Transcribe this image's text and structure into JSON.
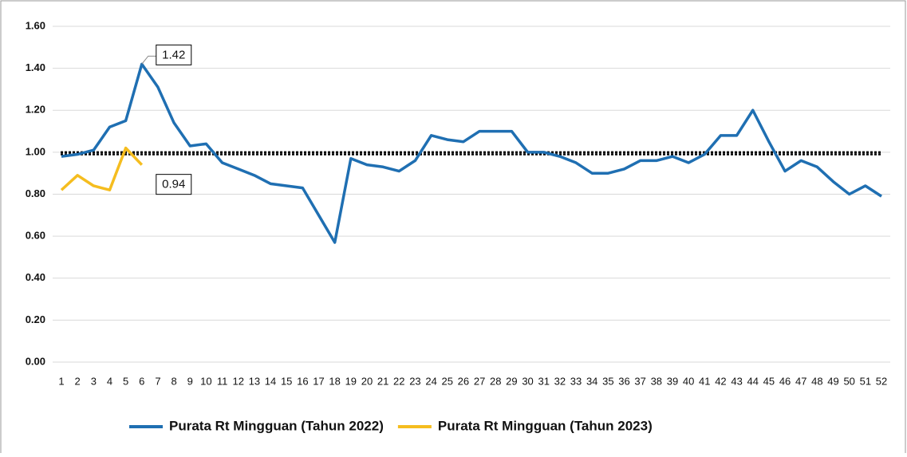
{
  "chart_data": {
    "type": "line",
    "categories": [
      "1",
      "2",
      "3",
      "4",
      "5",
      "6",
      "7",
      "8",
      "9",
      "10",
      "11",
      "12",
      "13",
      "14",
      "15",
      "16",
      "17",
      "18",
      "19",
      "20",
      "21",
      "22",
      "23",
      "24",
      "25",
      "26",
      "27",
      "28",
      "29",
      "30",
      "31",
      "32",
      "33",
      "34",
      "35",
      "36",
      "37",
      "38",
      "39",
      "40",
      "41",
      "42",
      "43",
      "44",
      "45",
      "46",
      "47",
      "48",
      "49",
      "50",
      "51",
      "52"
    ],
    "series": [
      {
        "name": "Purata Rt Mingguan (Tahun 2022)",
        "color": "#1f6fb2",
        "values": [
          0.98,
          0.99,
          1.01,
          1.12,
          1.15,
          1.42,
          1.31,
          1.14,
          1.03,
          1.04,
          0.95,
          0.92,
          0.89,
          0.85,
          0.84,
          0.83,
          0.7,
          0.57,
          0.97,
          0.94,
          0.93,
          0.91,
          0.96,
          1.08,
          1.06,
          1.05,
          1.1,
          1.1,
          1.1,
          1.0,
          1.0,
          0.98,
          0.95,
          0.9,
          0.9,
          0.92,
          0.96,
          0.96,
          0.98,
          0.95,
          0.99,
          1.08,
          1.08,
          1.2,
          1.05,
          0.91,
          0.96,
          0.93,
          0.86,
          0.8,
          0.84,
          0.79
        ],
        "value_labels": [
          null,
          null,
          null,
          null,
          null,
          "1.42",
          null,
          null,
          null,
          null,
          null,
          null,
          null,
          null,
          null,
          null,
          null,
          null,
          null,
          null,
          null,
          null,
          null,
          null,
          null,
          null,
          null,
          null,
          null,
          null,
          null,
          null,
          null,
          null,
          null,
          null,
          null,
          null,
          null,
          null,
          null,
          null,
          null,
          null,
          null,
          null,
          null,
          null,
          null,
          null,
          null,
          null
        ]
      },
      {
        "name": "Purata Rt Mingguan (Tahun 2023)",
        "color": "#f5bd1f",
        "values": [
          0.82,
          0.89,
          0.84,
          0.82,
          1.02,
          0.94,
          null,
          null,
          null,
          null,
          null,
          null,
          null,
          null,
          null,
          null,
          null,
          null,
          null,
          null,
          null,
          null,
          null,
          null,
          null,
          null,
          null,
          null,
          null,
          null,
          null,
          null,
          null,
          null,
          null,
          null,
          null,
          null,
          null,
          null,
          null,
          null,
          null,
          null,
          null,
          null,
          null,
          null,
          null,
          null,
          null,
          null
        ],
        "value_labels": [
          null,
          null,
          null,
          null,
          null,
          "0.94",
          null,
          null,
          null,
          null,
          null,
          null,
          null,
          null,
          null,
          null,
          null,
          null,
          null,
          null,
          null,
          null,
          null,
          null,
          null,
          null,
          null,
          null,
          null,
          null,
          null,
          null,
          null,
          null,
          null,
          null,
          null,
          null,
          null,
          null,
          null,
          null,
          null,
          null,
          null,
          null,
          null,
          null,
          null,
          null,
          null,
          null
        ]
      }
    ],
    "reference_lines": [
      1.0,
      0.99
    ],
    "ylim": [
      0,
      1.6
    ],
    "yticks": [
      {
        "value": 0,
        "label": "0.00"
      },
      {
        "value": 0.2,
        "label": "0.20"
      },
      {
        "value": 0.4,
        "label": "0.40"
      },
      {
        "value": 0.6,
        "label": "0.60"
      },
      {
        "value": 0.8,
        "label": "0.80"
      },
      {
        "value": 1,
        "label": "1.00"
      },
      {
        "value": 1.2,
        "label": "1.20"
      },
      {
        "value": 1.4,
        "label": "1.40"
      },
      {
        "value": 1.6,
        "label": "1.60"
      }
    ],
    "grid": true,
    "legend": "bottom"
  }
}
